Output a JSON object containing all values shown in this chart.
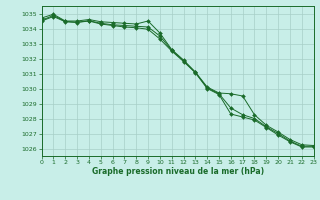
{
  "title": "Graphe pression niveau de la mer (hPa)",
  "bg_color": "#c8eee8",
  "grid_color": "#a8cfc8",
  "line_color": "#1a6b2a",
  "xlim": [
    0,
    23
  ],
  "ylim": [
    1025.5,
    1035.5
  ],
  "yticks": [
    1026,
    1027,
    1028,
    1029,
    1030,
    1031,
    1032,
    1033,
    1034,
    1035
  ],
  "xticks": [
    0,
    1,
    2,
    3,
    4,
    5,
    6,
    7,
    8,
    9,
    10,
    11,
    12,
    13,
    14,
    15,
    16,
    17,
    18,
    19,
    20,
    21,
    22,
    23
  ],
  "line1_x": [
    0,
    1,
    2,
    3,
    4,
    5,
    6,
    7,
    8,
    9,
    10,
    11,
    12,
    13,
    14,
    15,
    16,
    17,
    18,
    19,
    20,
    21,
    22,
    23
  ],
  "line1_y": [
    1034.7,
    1034.95,
    1034.5,
    1034.5,
    1034.6,
    1034.45,
    1034.4,
    1034.35,
    1034.3,
    1034.5,
    1033.7,
    1032.6,
    1031.9,
    1031.1,
    1030.1,
    1029.7,
    1029.65,
    1029.5,
    1028.25,
    1027.55,
    1027.1,
    1026.6,
    1026.25,
    1026.2
  ],
  "line2_x": [
    0,
    1,
    2,
    3,
    4,
    5,
    6,
    7,
    8,
    9,
    10,
    11,
    12,
    13,
    14,
    15,
    16,
    17,
    18,
    19,
    20,
    21,
    22,
    23
  ],
  "line2_y": [
    1034.5,
    1034.8,
    1034.45,
    1034.4,
    1034.5,
    1034.3,
    1034.2,
    1034.1,
    1034.05,
    1033.95,
    1033.3,
    1032.5,
    1031.8,
    1031.05,
    1030.0,
    1029.6,
    1028.3,
    1028.1,
    1027.9,
    1027.4,
    1026.9,
    1026.45,
    1026.1,
    1026.1
  ],
  "line3_x": [
    0,
    1,
    2,
    3,
    4,
    5,
    6,
    7,
    8,
    9,
    10,
    11,
    12,
    13,
    14,
    15,
    16,
    17,
    18,
    19,
    20,
    21,
    22,
    23
  ],
  "line3_y": [
    1034.55,
    1034.87,
    1034.47,
    1034.42,
    1034.52,
    1034.35,
    1034.25,
    1034.2,
    1034.15,
    1034.1,
    1033.5,
    1032.55,
    1031.85,
    1031.07,
    1030.05,
    1029.65,
    1028.7,
    1028.25,
    1028.0,
    1027.45,
    1027.0,
    1026.5,
    1026.15,
    1026.15
  ]
}
